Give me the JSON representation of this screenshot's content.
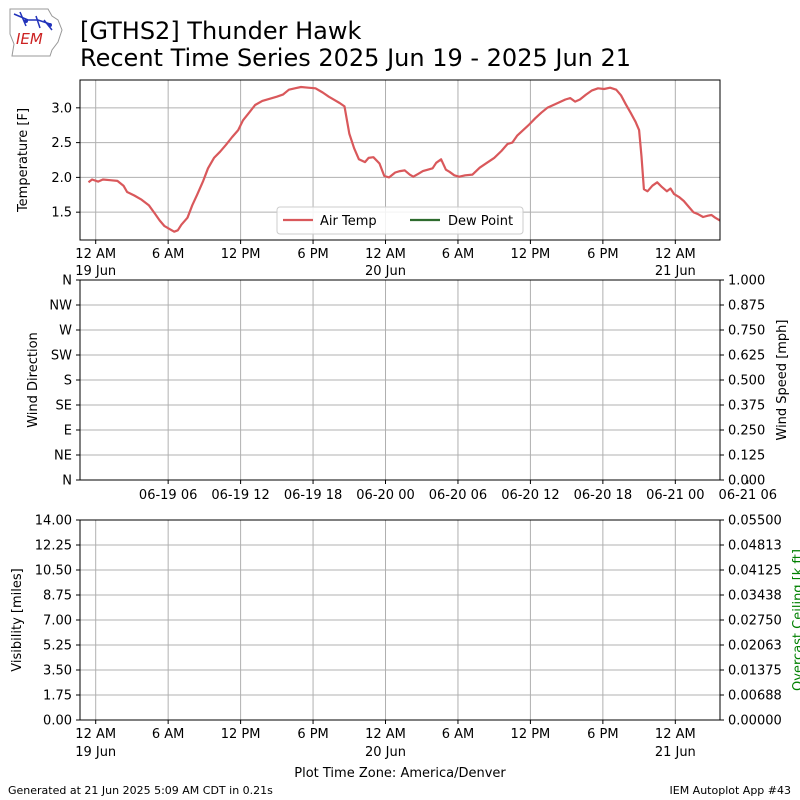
{
  "header": {
    "title_line1": "[GTHS2] Thunder Hawk",
    "title_line2": "Recent Time Series 2025 Jun 19 - 2025 Jun 21",
    "logo_text": "IEM"
  },
  "footer": {
    "generated": "Generated at 21 Jun 2025 5:09 AM CDT in 0.21s",
    "app": "IEM Autoplot App #43"
  },
  "chart_data": [
    {
      "type": "line",
      "ylabel": "Temperature [F]",
      "ylim": [
        1.1,
        3.4
      ],
      "xlim": [
        -1.3,
        51.7
      ],
      "y_ticks": [
        1.5,
        2.0,
        2.5,
        3.0
      ],
      "x_ticks": [
        {
          "x": 0,
          "line1": "12 AM",
          "line2": "19 Jun"
        },
        {
          "x": 6,
          "line1": "6 AM",
          "line2": ""
        },
        {
          "x": 12,
          "line1": "12 PM",
          "line2": ""
        },
        {
          "x": 18,
          "line1": "6 PM",
          "line2": ""
        },
        {
          "x": 24,
          "line1": "12 AM",
          "line2": "20 Jun"
        },
        {
          "x": 30,
          "line1": "6 AM",
          "line2": ""
        },
        {
          "x": 36,
          "line1": "12 PM",
          "line2": ""
        },
        {
          "x": 42,
          "line1": "6 PM",
          "line2": ""
        },
        {
          "x": 48,
          "line1": "12 AM",
          "line2": "21 Jun"
        }
      ],
      "grid": true,
      "legend": "lower-center",
      "series": [
        {
          "name": "Air Temp",
          "color": "#d9585b",
          "points": [
            [
              -0.6,
              1.93
            ],
            [
              -0.3,
              1.97
            ],
            [
              0.2,
              1.94
            ],
            [
              0.6,
              1.97
            ],
            [
              1.2,
              1.96
            ],
            [
              1.8,
              1.95
            ],
            [
              2.3,
              1.88
            ],
            [
              2.6,
              1.79
            ],
            [
              3.2,
              1.74
            ],
            [
              3.8,
              1.68
            ],
            [
              4.4,
              1.6
            ],
            [
              4.9,
              1.48
            ],
            [
              5.3,
              1.38
            ],
            [
              5.7,
              1.3
            ],
            [
              6.1,
              1.26
            ],
            [
              6.5,
              1.22
            ],
            [
              6.8,
              1.24
            ],
            [
              7.1,
              1.32
            ],
            [
              7.6,
              1.42
            ],
            [
              8.0,
              1.6
            ],
            [
              8.4,
              1.75
            ],
            [
              8.9,
              1.95
            ],
            [
              9.3,
              2.13
            ],
            [
              9.8,
              2.28
            ],
            [
              10.3,
              2.37
            ],
            [
              10.8,
              2.47
            ],
            [
              11.3,
              2.58
            ],
            [
              11.8,
              2.68
            ],
            [
              12.2,
              2.82
            ],
            [
              12.7,
              2.93
            ],
            [
              13.2,
              3.04
            ],
            [
              13.8,
              3.1
            ],
            [
              14.4,
              3.13
            ],
            [
              15.0,
              3.16
            ],
            [
              15.5,
              3.19
            ],
            [
              16.0,
              3.26
            ],
            [
              16.5,
              3.28
            ],
            [
              17.0,
              3.3
            ],
            [
              17.6,
              3.29
            ],
            [
              18.2,
              3.28
            ],
            [
              18.8,
              3.22
            ],
            [
              19.3,
              3.16
            ],
            [
              19.8,
              3.11
            ],
            [
              20.2,
              3.07
            ],
            [
              20.6,
              3.02
            ],
            [
              21.0,
              2.63
            ],
            [
              21.4,
              2.42
            ],
            [
              21.8,
              2.26
            ],
            [
              22.3,
              2.22
            ],
            [
              22.6,
              2.28
            ],
            [
              23.0,
              2.29
            ],
            [
              23.5,
              2.2
            ],
            [
              23.9,
              2.02
            ],
            [
              24.3,
              2.0
            ],
            [
              24.8,
              2.07
            ],
            [
              25.2,
              2.09
            ],
            [
              25.6,
              2.1
            ],
            [
              26.0,
              2.04
            ],
            [
              26.3,
              2.01
            ],
            [
              26.7,
              2.05
            ],
            [
              27.1,
              2.09
            ],
            [
              27.5,
              2.11
            ],
            [
              27.9,
              2.13
            ],
            [
              28.2,
              2.21
            ],
            [
              28.6,
              2.26
            ],
            [
              29.0,
              2.11
            ],
            [
              29.3,
              2.08
            ],
            [
              29.7,
              2.03
            ],
            [
              30.1,
              2.01
            ],
            [
              30.6,
              2.03
            ],
            [
              31.2,
              2.04
            ],
            [
              31.8,
              2.14
            ],
            [
              32.4,
              2.21
            ],
            [
              33.0,
              2.28
            ],
            [
              33.6,
              2.38
            ],
            [
              34.1,
              2.48
            ],
            [
              34.5,
              2.5
            ],
            [
              34.9,
              2.6
            ],
            [
              35.4,
              2.68
            ],
            [
              35.9,
              2.76
            ],
            [
              36.4,
              2.85
            ],
            [
              36.9,
              2.93
            ],
            [
              37.4,
              3.0
            ],
            [
              37.9,
              3.04
            ],
            [
              38.4,
              3.08
            ],
            [
              38.9,
              3.12
            ],
            [
              39.3,
              3.14
            ],
            [
              39.7,
              3.09
            ],
            [
              40.1,
              3.12
            ],
            [
              40.6,
              3.19
            ],
            [
              41.1,
              3.25
            ],
            [
              41.6,
              3.28
            ],
            [
              42.1,
              3.27
            ],
            [
              42.6,
              3.29
            ],
            [
              43.1,
              3.26
            ],
            [
              43.5,
              3.18
            ],
            [
              43.9,
              3.05
            ],
            [
              44.3,
              2.93
            ],
            [
              44.7,
              2.8
            ],
            [
              45.0,
              2.68
            ],
            [
              45.2,
              2.3
            ],
            [
              45.4,
              1.83
            ],
            [
              45.7,
              1.8
            ],
            [
              46.1,
              1.88
            ],
            [
              46.5,
              1.93
            ],
            [
              46.9,
              1.86
            ],
            [
              47.3,
              1.8
            ],
            [
              47.6,
              1.84
            ],
            [
              47.9,
              1.76
            ],
            [
              48.3,
              1.72
            ],
            [
              48.7,
              1.66
            ],
            [
              49.1,
              1.58
            ],
            [
              49.5,
              1.5
            ],
            [
              49.9,
              1.47
            ],
            [
              50.3,
              1.43
            ],
            [
              50.7,
              1.45
            ],
            [
              51.0,
              1.46
            ],
            [
              51.3,
              1.42
            ],
            [
              51.7,
              1.38
            ]
          ]
        },
        {
          "name": "Dew Point",
          "color": "#2e6b2e",
          "points": []
        }
      ]
    },
    {
      "type": "line",
      "ylabel": "Wind Direction",
      "y2label": "Wind Speed [mph]",
      "ylim": [
        0,
        360
      ],
      "y_ticks": [
        {
          "v": 0,
          "label": "N"
        },
        {
          "v": 45,
          "label": "NE"
        },
        {
          "v": 90,
          "label": "E"
        },
        {
          "v": 135,
          "label": "SE"
        },
        {
          "v": 180,
          "label": "S"
        },
        {
          "v": 225,
          "label": "SW"
        },
        {
          "v": 270,
          "label": "W"
        },
        {
          "v": 315,
          "label": "NW"
        },
        {
          "v": 360,
          "label": "N"
        }
      ],
      "y2lim": [
        0,
        1
      ],
      "y2_ticks": [
        "0.000",
        "0.125",
        "0.250",
        "0.375",
        "0.500",
        "0.625",
        "0.750",
        "0.875",
        "1.000"
      ],
      "xlim": [
        -1.3,
        51.7
      ],
      "x_ticks": [
        {
          "x": 6,
          "label": "06-19 06"
        },
        {
          "x": 12,
          "label": "06-19 12"
        },
        {
          "x": 18,
          "label": "06-19 18"
        },
        {
          "x": 24,
          "label": "06-20 00"
        },
        {
          "x": 30,
          "label": "06-20 06"
        },
        {
          "x": 36,
          "label": "06-20 12"
        },
        {
          "x": 42,
          "label": "06-20 18"
        },
        {
          "x": 48,
          "label": "06-21 00"
        },
        {
          "x": 54,
          "label": "06-21 06"
        }
      ],
      "grid": true,
      "series": []
    },
    {
      "type": "line",
      "ylabel": "Visibility [miles]",
      "y2label": "Overcast Ceiling [k ft]",
      "y2label_color": "#008000",
      "ylim": [
        0,
        14
      ],
      "y_ticks": [
        "0.00",
        "1.75",
        "3.50",
        "5.25",
        "7.00",
        "8.75",
        "10.50",
        "12.25",
        "14.00"
      ],
      "y2lim": [
        0,
        0.055
      ],
      "y2_ticks": [
        "0.00000",
        "0.00688",
        "0.01375",
        "0.02063",
        "0.02750",
        "0.03438",
        "0.04125",
        "0.04813",
        "0.05500"
      ],
      "xlim": [
        -1.3,
        51.7
      ],
      "x_ticks": [
        {
          "x": 0,
          "line1": "12 AM",
          "line2": "19 Jun"
        },
        {
          "x": 6,
          "line1": "6 AM",
          "line2": ""
        },
        {
          "x": 12,
          "line1": "12 PM",
          "line2": ""
        },
        {
          "x": 18,
          "line1": "6 PM",
          "line2": ""
        },
        {
          "x": 24,
          "line1": "12 AM",
          "line2": "20 Jun"
        },
        {
          "x": 30,
          "line1": "6 AM",
          "line2": ""
        },
        {
          "x": 36,
          "line1": "12 PM",
          "line2": ""
        },
        {
          "x": 42,
          "line1": "6 PM",
          "line2": ""
        },
        {
          "x": 48,
          "line1": "12 AM",
          "line2": "21 Jun"
        }
      ],
      "xlabel": "Plot Time Zone: America/Denver",
      "grid": true,
      "series": []
    }
  ]
}
